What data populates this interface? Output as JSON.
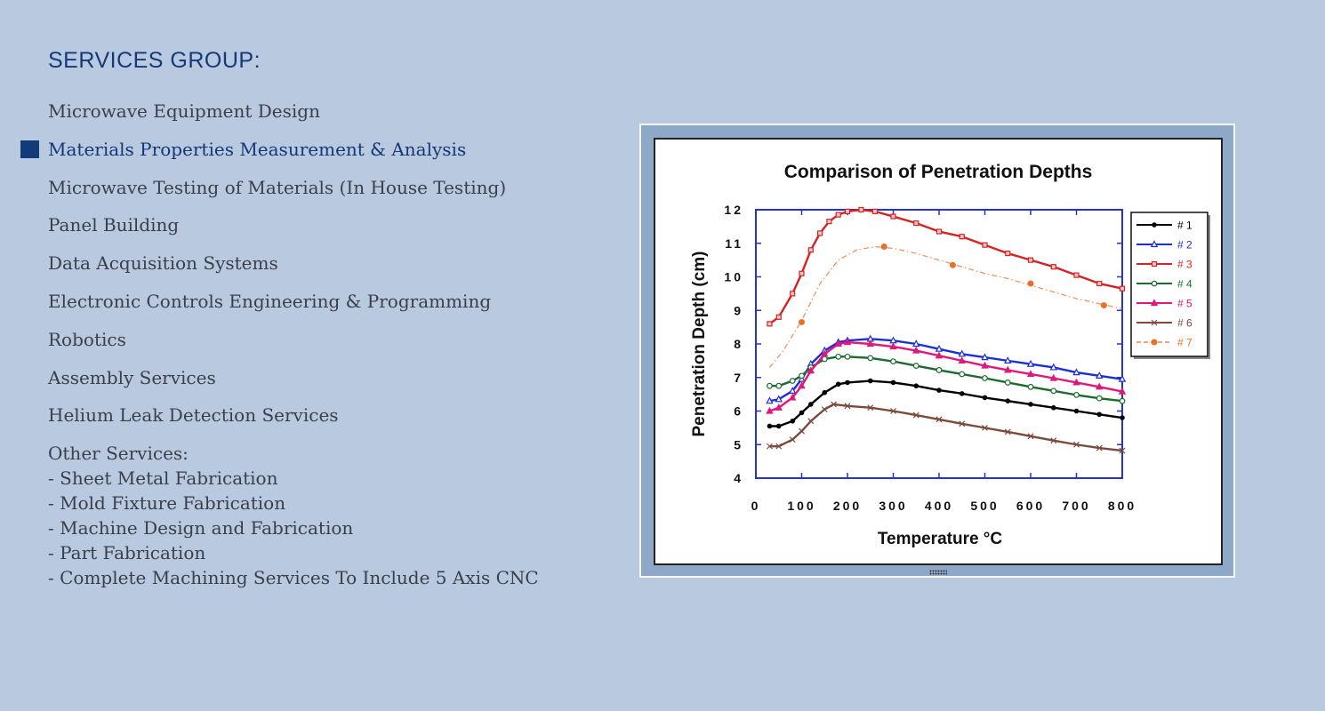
{
  "heading": "SERVICES GROUP:",
  "menu": {
    "items": [
      {
        "label": "Microwave Equipment Design",
        "active": false
      },
      {
        "label": "Materials Properties Measurement & Analysis",
        "active": true
      },
      {
        "label": "Microwave Testing of Materials (In House Testing)",
        "active": false
      },
      {
        "label": "Panel Building",
        "active": false
      },
      {
        "label": "Data Acquisition Systems",
        "active": false
      },
      {
        "label": "Electronic Controls Engineering & Programming",
        "active": false
      },
      {
        "label": "Robotics",
        "active": false
      },
      {
        "label": "Assembly Services",
        "active": false
      },
      {
        "label": "Helium Leak Detection Services",
        "active": false
      }
    ],
    "other_title": "Other Services:",
    "other_items": [
      "- Sheet Metal Fabrication",
      "- Mold Fixture Fabrication",
      "- Machine Design and Fabrication",
      "- Part Fabrication",
      "- Complete Machining Services To Include 5 Axis CNC"
    ]
  },
  "colors": {
    "background": "#b8c9e0",
    "heading": "#163a78",
    "active_marker": "#123b7a"
  },
  "chart_data": {
    "type": "line",
    "title": "Comparison of Penetration Depths",
    "xlabel": "Temperature   °C",
    "ylabel": "Penetration  Depth  (cm)",
    "xlim": [
      0,
      800
    ],
    "ylim": [
      4,
      12
    ],
    "xticks": [
      0,
      100,
      200,
      300,
      400,
      500,
      600,
      700,
      800
    ],
    "yticks": [
      4,
      5,
      6,
      7,
      8,
      9,
      10,
      11,
      12
    ],
    "legend_position": "top-right",
    "series": [
      {
        "name": "# 1",
        "color": "#000000",
        "marker": "dot",
        "dashed": false,
        "x": [
          30,
          50,
          80,
          100,
          120,
          150,
          180,
          200,
          250,
          300,
          350,
          400,
          450,
          500,
          550,
          600,
          650,
          700,
          750,
          800
        ],
        "y": [
          5.55,
          5.55,
          5.7,
          5.95,
          6.2,
          6.55,
          6.8,
          6.85,
          6.9,
          6.85,
          6.75,
          6.62,
          6.52,
          6.4,
          6.3,
          6.2,
          6.1,
          6.0,
          5.9,
          5.8
        ]
      },
      {
        "name": "# 2",
        "color": "#1a2fd6",
        "marker": "triangle",
        "dashed": false,
        "x": [
          30,
          50,
          80,
          100,
          120,
          150,
          180,
          200,
          250,
          300,
          350,
          400,
          450,
          500,
          550,
          600,
          650,
          700,
          750,
          800
        ],
        "y": [
          6.3,
          6.35,
          6.6,
          6.95,
          7.4,
          7.8,
          8.05,
          8.1,
          8.15,
          8.1,
          8.0,
          7.85,
          7.7,
          7.6,
          7.5,
          7.4,
          7.3,
          7.15,
          7.05,
          6.95
        ]
      },
      {
        "name": "# 3",
        "color": "#d62222",
        "marker": "square",
        "dashed": false,
        "x": [
          30,
          50,
          80,
          100,
          120,
          140,
          160,
          180,
          200,
          230,
          260,
          300,
          350,
          400,
          450,
          500,
          550,
          600,
          650,
          700,
          750,
          800
        ],
        "y": [
          8.6,
          8.8,
          9.5,
          10.1,
          10.8,
          11.3,
          11.65,
          11.85,
          11.95,
          12.0,
          11.95,
          11.8,
          11.6,
          11.35,
          11.2,
          10.95,
          10.7,
          10.5,
          10.3,
          10.05,
          9.8,
          9.65
        ]
      },
      {
        "name": "# 4",
        "color": "#1b6b2e",
        "marker": "circle",
        "dashed": false,
        "x": [
          30,
          50,
          80,
          100,
          120,
          150,
          180,
          200,
          250,
          300,
          350,
          400,
          450,
          500,
          550,
          600,
          650,
          700,
          750,
          800
        ],
        "y": [
          6.75,
          6.75,
          6.9,
          7.05,
          7.3,
          7.55,
          7.62,
          7.62,
          7.58,
          7.48,
          7.35,
          7.22,
          7.1,
          6.98,
          6.85,
          6.72,
          6.6,
          6.48,
          6.38,
          6.3
        ]
      },
      {
        "name": "# 5",
        "color": "#e0187a",
        "marker": "triangle-filled",
        "dashed": false,
        "x": [
          30,
          50,
          80,
          100,
          120,
          150,
          180,
          200,
          250,
          300,
          350,
          400,
          450,
          500,
          550,
          600,
          650,
          700,
          750,
          800
        ],
        "y": [
          6.0,
          6.1,
          6.4,
          6.75,
          7.2,
          7.7,
          8.0,
          8.05,
          8.0,
          7.92,
          7.8,
          7.65,
          7.5,
          7.35,
          7.22,
          7.1,
          6.98,
          6.85,
          6.72,
          6.58
        ]
      },
      {
        "name": "# 6",
        "color": "#7b4a3c",
        "marker": "x",
        "dashed": false,
        "x": [
          30,
          50,
          80,
          100,
          120,
          150,
          170,
          200,
          250,
          300,
          350,
          400,
          450,
          500,
          550,
          600,
          650,
          700,
          750,
          800
        ],
        "y": [
          4.95,
          4.95,
          5.15,
          5.4,
          5.7,
          6.05,
          6.2,
          6.15,
          6.1,
          6.0,
          5.88,
          5.75,
          5.62,
          5.5,
          5.38,
          5.25,
          5.12,
          5.0,
          4.9,
          4.82
        ]
      },
      {
        "name": "# 7",
        "color": "#e8702a",
        "marker": "dot-large",
        "dashed": true,
        "x": [
          30,
          60,
          100,
          140,
          180,
          220,
          260,
          300,
          350,
          400,
          450,
          500,
          550,
          600,
          650,
          700,
          750,
          800
        ],
        "y": [
          7.3,
          7.8,
          8.7,
          9.8,
          10.5,
          10.8,
          10.9,
          10.85,
          10.7,
          10.5,
          10.3,
          10.1,
          9.95,
          9.75,
          9.55,
          9.35,
          9.2,
          9.05
        ],
        "marker_x": [
          100,
          280,
          430,
          600,
          760
        ],
        "marker_y": [
          8.65,
          10.9,
          10.35,
          9.8,
          9.15
        ]
      }
    ]
  }
}
